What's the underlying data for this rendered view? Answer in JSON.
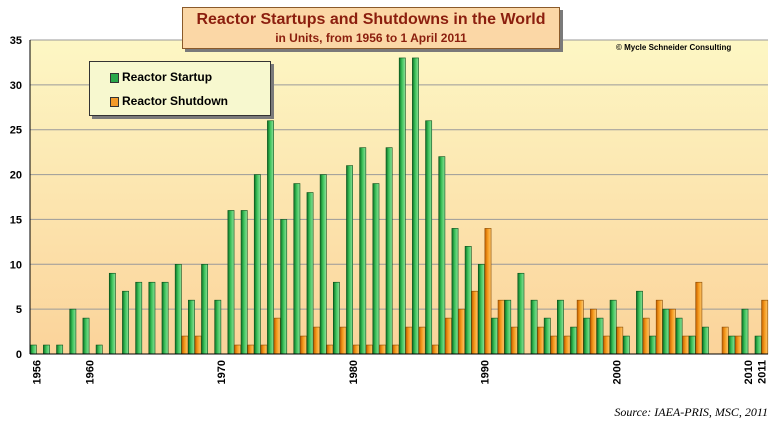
{
  "title": "Reactor Startups and Shutdowns in the World",
  "subtitle": "in Units, from 1956 to 1 April 2011",
  "copyright": "© Mycle Schneider Consulting",
  "source": "Source: IAEA-PRIS, MSC, 2011",
  "legend": {
    "startup_label": "Reactor Startup",
    "shutdown_label": "Reactor Shutdown"
  },
  "colors": {
    "startup": "#1f9a3c",
    "shutdown": "#f0890f",
    "plot_bg_top": "#fdf7c4",
    "plot_bg_bottom": "#fbd39a"
  },
  "chart_data": {
    "type": "bar",
    "title": "Reactor Startups and Shutdowns in the World",
    "subtitle": "in Units, from 1956 to 1 April 2011",
    "categories": [
      1956,
      1957,
      1958,
      1959,
      1960,
      1961,
      1962,
      1963,
      1964,
      1965,
      1966,
      1967,
      1968,
      1969,
      1970,
      1971,
      1972,
      1973,
      1974,
      1975,
      1976,
      1977,
      1978,
      1979,
      1980,
      1981,
      1982,
      1983,
      1984,
      1985,
      1986,
      1987,
      1988,
      1989,
      1990,
      1991,
      1992,
      1993,
      1994,
      1995,
      1996,
      1997,
      1998,
      1999,
      2000,
      2001,
      2002,
      2003,
      2004,
      2005,
      2006,
      2007,
      2008,
      2009,
      2010,
      2011
    ],
    "x_tick_labels": [
      "1956",
      "1960",
      "1970",
      "1980",
      "1990",
      "2000",
      "2010",
      "2011"
    ],
    "y_ticks": [
      0,
      5,
      10,
      15,
      20,
      25,
      30,
      35
    ],
    "ylim": [
      0,
      35
    ],
    "grid": true,
    "legend_position": "top-left",
    "series": [
      {
        "name": "Reactor Startup",
        "values": [
          1,
          1,
          1,
          5,
          4,
          1,
          9,
          7,
          8,
          8,
          8,
          10,
          6,
          10,
          6,
          16,
          16,
          20,
          26,
          15,
          19,
          18,
          20,
          8,
          21,
          23,
          19,
          23,
          33,
          33,
          26,
          22,
          14,
          12,
          10,
          4,
          6,
          9,
          6,
          4,
          6,
          3,
          4,
          4,
          6,
          2,
          7,
          2,
          5,
          4,
          2,
          3,
          0,
          2,
          5,
          2
        ]
      },
      {
        "name": "Reactor Shutdown",
        "values": [
          0,
          0,
          0,
          0,
          0,
          0,
          0,
          0,
          0,
          0,
          0,
          2,
          2,
          0,
          0,
          1,
          1,
          1,
          4,
          0,
          2,
          3,
          1,
          3,
          1,
          1,
          1,
          1,
          3,
          3,
          1,
          4,
          5,
          7,
          14,
          6,
          3,
          0,
          3,
          2,
          2,
          6,
          5,
          2,
          3,
          0,
          4,
          6,
          5,
          2,
          8,
          0,
          3,
          2,
          0,
          6
        ]
      }
    ]
  }
}
